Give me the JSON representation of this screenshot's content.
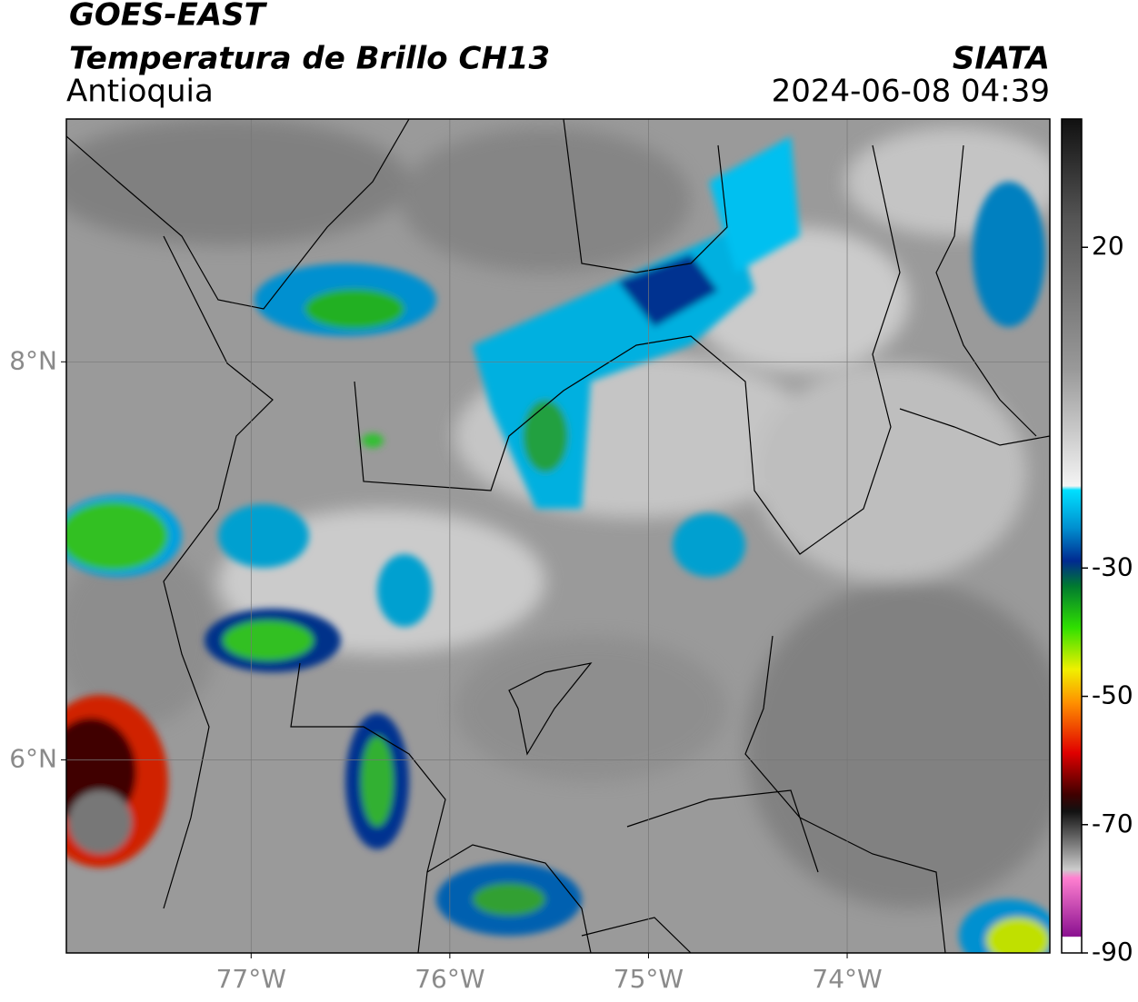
{
  "header": {
    "title": "GOES-EAST",
    "subtitle": "Temperatura de Brillo CH13",
    "region": "Antioquia",
    "source": "SIATA",
    "datetime": "2024-06-08 04:39"
  },
  "map": {
    "xlim": [
      -77.93,
      -72.98
    ],
    "ylim": [
      5.03,
      9.22
    ],
    "xticks": [
      {
        "value": -77,
        "label": "77°W"
      },
      {
        "value": -76,
        "label": "76°W"
      },
      {
        "value": -75,
        "label": "75°W"
      },
      {
        "value": -74,
        "label": "74°W"
      }
    ],
    "yticks": [
      {
        "value": 8,
        "label": "8°N"
      },
      {
        "value": 6,
        "label": "6°N"
      }
    ],
    "grid": true
  },
  "colorbar": {
    "lim": [
      -90,
      40
    ],
    "ticks": [
      20,
      -30,
      -50,
      -70,
      -90
    ]
  }
}
